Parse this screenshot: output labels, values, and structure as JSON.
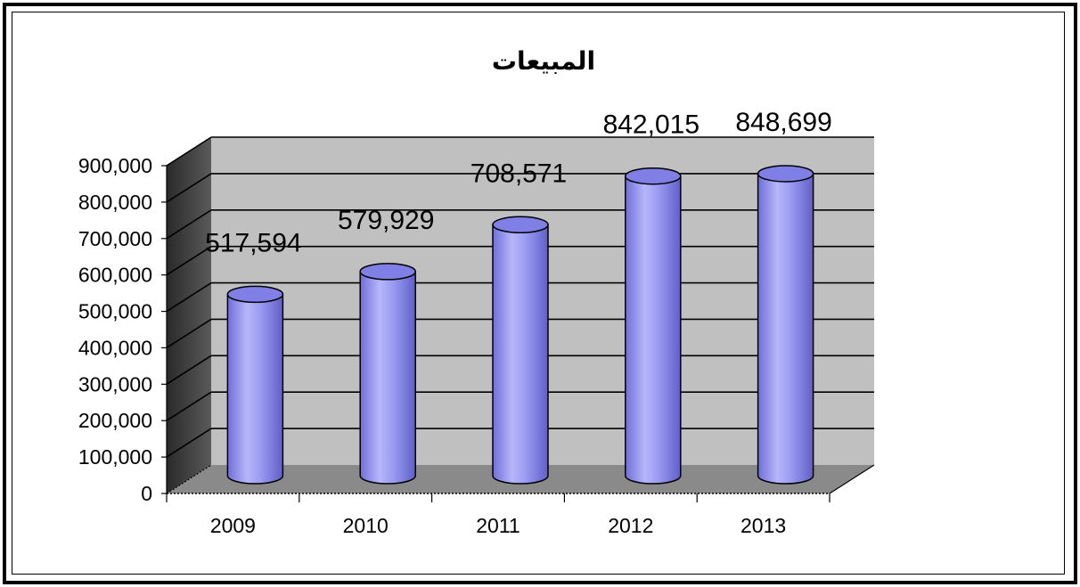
{
  "chart_data": {
    "type": "bar",
    "title": "المبيعات",
    "xlabel": "",
    "ylabel": "",
    "categories": [
      "2009",
      "2010",
      "2011",
      "2012",
      "2013"
    ],
    "series": [
      {
        "values": [
          517594,
          579929,
          708571,
          842015,
          848699
        ]
      }
    ],
    "data_labels": [
      "517,594",
      "579,929",
      "708,571",
      "842,015",
      "848,699"
    ],
    "y_ticks": [
      "0",
      "100,000",
      "200,000",
      "300,000",
      "400,000",
      "500,000",
      "600,000",
      "700,000",
      "800,000",
      "900,000"
    ],
    "ylim": [
      0,
      900000
    ],
    "grid": true,
    "style": "3d-cylinder",
    "colors": {
      "cylinder": "#9a9af2",
      "cylinder_dark": "#6f6fd8",
      "cylinder_light": "#c4c4fb",
      "back_wall": "#c0c0c0",
      "side_wall": "#4a4a4a",
      "floor": "#8a8a8a"
    }
  }
}
